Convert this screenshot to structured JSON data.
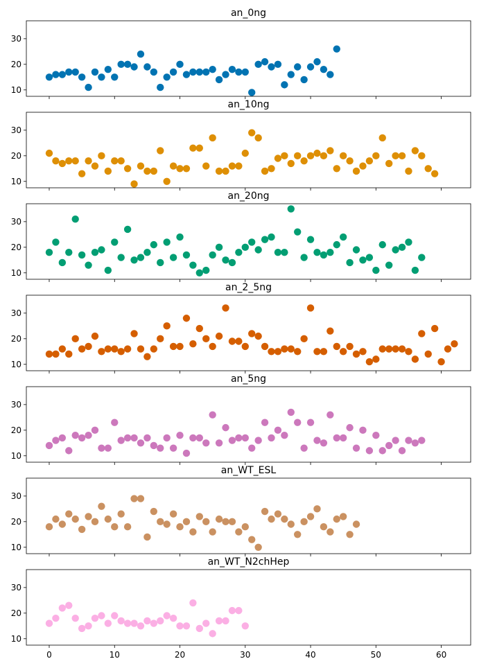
{
  "chart_data": [
    {
      "type": "scatter",
      "title": "an_0ng",
      "color": "#0173b2",
      "xlim": [
        -3.5,
        64.5
      ],
      "ylim": [
        7.5,
        37
      ],
      "yticks": [
        10,
        20,
        30
      ],
      "xticks": [
        0,
        10,
        20,
        30,
        40,
        50,
        60
      ],
      "y": [
        15,
        16,
        16,
        17,
        17,
        15,
        11,
        17,
        15,
        18,
        15,
        20,
        20,
        19,
        24,
        19,
        17,
        11,
        15,
        17,
        20,
        16,
        17,
        17,
        17,
        18,
        14,
        16,
        18,
        17,
        17,
        9,
        20,
        21,
        19,
        20,
        12,
        16,
        19,
        14,
        19,
        21,
        18,
        16,
        26
      ]
    },
    {
      "type": "scatter",
      "title": "an_10ng",
      "color": "#de8f05",
      "xlim": [
        -3.5,
        64.5
      ],
      "ylim": [
        7.5,
        37
      ],
      "yticks": [
        10,
        20,
        30
      ],
      "xticks": [
        0,
        10,
        20,
        30,
        40,
        50,
        60
      ],
      "y": [
        21,
        18,
        17,
        18,
        18,
        13,
        18,
        16,
        20,
        14,
        18,
        18,
        15,
        9,
        16,
        14,
        14,
        22,
        10,
        16,
        15,
        15,
        23,
        23,
        16,
        27,
        14,
        14,
        16,
        16,
        21,
        29,
        27,
        14,
        15,
        19,
        20,
        17,
        20,
        18,
        20,
        21,
        20,
        22,
        15,
        20,
        18,
        14,
        16,
        18,
        20,
        27,
        17,
        20,
        20,
        14,
        22,
        20,
        15,
        13
      ]
    },
    {
      "type": "scatter",
      "title": "an_20ng",
      "color": "#029e73",
      "xlim": [
        -3.5,
        64.5
      ],
      "ylim": [
        7.5,
        37
      ],
      "yticks": [
        10,
        20,
        30
      ],
      "xticks": [
        0,
        10,
        20,
        30,
        40,
        50,
        60
      ],
      "y": [
        18,
        22,
        14,
        18,
        31,
        17,
        13,
        18,
        19,
        11,
        22,
        16,
        27,
        15,
        16,
        18,
        21,
        14,
        22,
        16,
        24,
        17,
        13,
        10,
        11,
        17,
        20,
        15,
        14,
        18,
        20,
        22,
        19,
        23,
        24,
        18,
        18,
        35,
        26,
        16,
        23,
        18,
        17,
        18,
        21,
        24,
        14,
        19,
        15,
        16,
        11,
        21,
        13,
        19,
        20,
        22,
        11,
        16
      ]
    },
    {
      "type": "scatter",
      "title": "an_2_5ng",
      "color": "#d55e00",
      "xlim": [
        -3.5,
        64.5
      ],
      "ylim": [
        7.5,
        37
      ],
      "yticks": [
        10,
        20,
        30
      ],
      "xticks": [
        0,
        10,
        20,
        30,
        40,
        50,
        60
      ],
      "y": [
        14,
        14,
        16,
        14,
        20,
        16,
        17,
        21,
        15,
        16,
        16,
        15,
        16,
        22,
        16,
        13,
        16,
        20,
        25,
        17,
        17,
        28,
        18,
        24,
        20,
        17,
        21,
        32,
        19,
        19,
        17,
        22,
        21,
        17,
        15,
        15,
        16,
        16,
        15,
        20,
        32,
        15,
        15,
        23,
        17,
        15,
        17,
        14,
        15,
        11,
        12,
        16,
        16,
        16,
        16,
        15,
        12,
        22,
        14,
        24,
        11,
        16,
        18
      ]
    },
    {
      "type": "scatter",
      "title": "an_5ng",
      "color": "#cc78bc",
      "xlim": [
        -3.5,
        64.5
      ],
      "ylim": [
        7.5,
        37
      ],
      "yticks": [
        10,
        20,
        30
      ],
      "xticks": [
        0,
        10,
        20,
        30,
        40,
        50,
        60
      ],
      "y": [
        14,
        16,
        17,
        12,
        18,
        17,
        18,
        20,
        13,
        13,
        23,
        16,
        17,
        17,
        15,
        17,
        14,
        13,
        17,
        13,
        18,
        11,
        17,
        17,
        15,
        26,
        15,
        21,
        16,
        17,
        17,
        13,
        16,
        23,
        17,
        20,
        18,
        27,
        23,
        13,
        23,
        16,
        15,
        26,
        17,
        17,
        21,
        13,
        20,
        12,
        18,
        12,
        14,
        16,
        12,
        16,
        15,
        16
      ]
    },
    {
      "type": "scatter",
      "title": "an_WT_ESL",
      "color": "#ca9161",
      "xlim": [
        -3.5,
        64.5
      ],
      "ylim": [
        7.5,
        37
      ],
      "yticks": [
        10,
        20,
        30
      ],
      "xticks": [
        0,
        10,
        20,
        30,
        40,
        50,
        60
      ],
      "y": [
        18,
        21,
        19,
        23,
        21,
        17,
        22,
        20,
        26,
        21,
        18,
        23,
        18,
        29,
        29,
        14,
        24,
        20,
        19,
        23,
        18,
        20,
        16,
        22,
        20,
        16,
        21,
        20,
        20,
        16,
        18,
        13,
        10,
        24,
        21,
        23,
        21,
        19,
        15,
        20,
        22,
        25,
        18,
        16,
        21,
        22,
        15,
        19
      ]
    },
    {
      "type": "scatter",
      "title": "an_WT_N2chHep",
      "color": "#fbafe4",
      "xlim": [
        -3.5,
        64.5
      ],
      "ylim": [
        7.5,
        37
      ],
      "yticks": [
        10,
        20,
        30
      ],
      "xticks": [
        0,
        10,
        20,
        30,
        40,
        50,
        60
      ],
      "y": [
        16,
        18,
        22,
        23,
        18,
        14,
        15,
        18,
        19,
        16,
        19,
        17,
        16,
        16,
        15,
        17,
        16,
        17,
        19,
        18,
        15,
        15,
        24,
        14,
        16,
        12,
        17,
        17,
        21,
        21,
        15
      ]
    }
  ]
}
